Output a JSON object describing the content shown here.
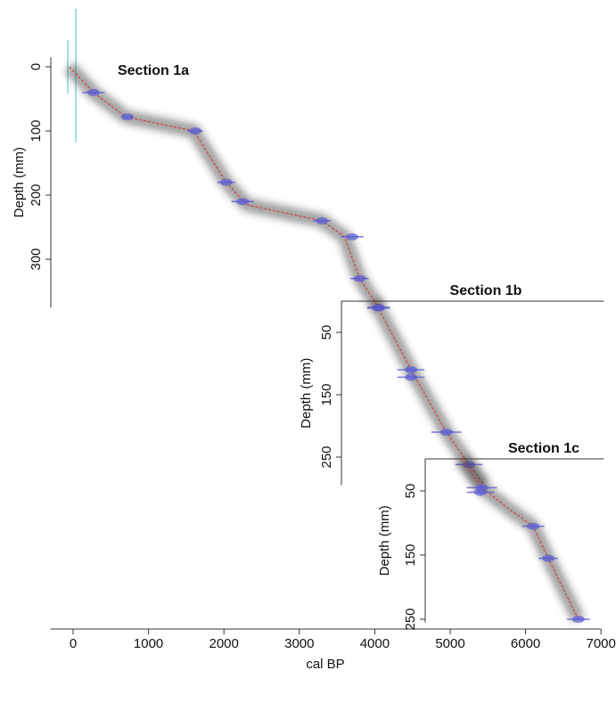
{
  "chart_data": {
    "type": "age-depth",
    "x_label": "cal BP",
    "xlim": [
      -300,
      7000
    ],
    "xticks": [
      0,
      1000,
      2000,
      3000,
      4000,
      5000,
      6000,
      7000
    ],
    "point_color": "#5a5ad6",
    "model_color": "#333333",
    "mean_color": "#e0302a",
    "panels": [
      {
        "title": "Section 1a",
        "y_label": "Depth (mm)",
        "ylim": [
          -15,
          375
        ],
        "yticks": [
          0,
          100,
          200,
          300
        ],
        "points": {
          "x": [
            270,
            720,
            1620,
            2030,
            2250,
            3300,
            3700,
            3800,
            4050
          ],
          "y": [
            40,
            78,
            100,
            180,
            210,
            240,
            265,
            330,
            375
          ],
          "xerr": [
            150,
            80,
            100,
            120,
            150,
            120,
            150,
            120,
            150
          ]
        },
        "model": {
          "x": [
            -50,
            270,
            700,
            1600,
            2030,
            2300,
            3300,
            3600,
            3800,
            4050
          ],
          "y": [
            0,
            40,
            78,
            100,
            180,
            215,
            240,
            265,
            330,
            375
          ]
        }
      },
      {
        "title": "Section 1b",
        "y_label": "Depth (mm)",
        "ylim": [
          0,
          295
        ],
        "yticks": [
          50,
          150,
          250
        ],
        "points": {
          "x": [
            4050,
            4480,
            4480,
            4950,
            5250
          ],
          "y": [
            11,
            110,
            122,
            210,
            262
          ],
          "xerr": [
            150,
            180,
            180,
            200,
            180
          ]
        },
        "model": {
          "x": [
            4000,
            4480,
            4950,
            5250,
            5450
          ],
          "y": [
            0,
            110,
            210,
            262,
            295
          ]
        }
      },
      {
        "title": "Section 1c",
        "y_label": "Depth (mm)",
        "ylim": [
          0,
          255
        ],
        "yticks": [
          50,
          150,
          250
        ],
        "points": {
          "x": [
            5420,
            5400,
            6100,
            6300,
            6700
          ],
          "y": [
            45,
            52,
            105,
            155,
            250
          ],
          "xerr": [
            200,
            180,
            150,
            130,
            150
          ]
        },
        "model": {
          "x": [
            5150,
            5420,
            5800,
            6100,
            6300,
            6700
          ],
          "y": [
            0,
            45,
            80,
            105,
            155,
            250
          ]
        }
      }
    ]
  }
}
